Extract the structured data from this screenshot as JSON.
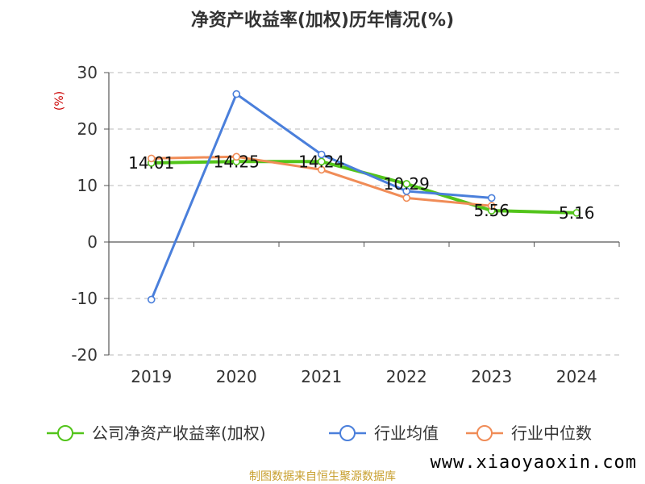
{
  "chart_data": {
    "type": "line",
    "title": "净资产收益率(加权)历年情况(%)",
    "ylabel": "(%)",
    "xlabel": "",
    "categories": [
      "2019",
      "2020",
      "2021",
      "2022",
      "2023",
      "2024"
    ],
    "ylim": [
      -20,
      30
    ],
    "yticks": [
      30,
      20,
      10,
      0,
      -10,
      -20
    ],
    "grid": true,
    "legend_position": "bottom",
    "series": [
      {
        "name": "公司净资产收益率(加权)",
        "color": "#52c41a",
        "values": [
          14.01,
          14.25,
          14.24,
          10.29,
          5.56,
          5.16
        ],
        "labels": [
          "14.01",
          "14.25",
          "14.24",
          "10.29",
          "5.56",
          "5.16"
        ]
      },
      {
        "name": "行业均值",
        "color": "#4a7fdb",
        "values": [
          -10.2,
          26.2,
          15.5,
          9.0,
          7.8,
          null
        ]
      },
      {
        "name": "行业中位数",
        "color": "#f08c57",
        "values": [
          14.8,
          15.1,
          12.8,
          7.8,
          6.4,
          null
        ]
      }
    ]
  },
  "source_text": "制图数据来自恒生聚源数据库",
  "source_color": "#c8a030",
  "ylabel_color": "#cc0000",
  "watermark_text": "www.xiaoyaoxin.com"
}
